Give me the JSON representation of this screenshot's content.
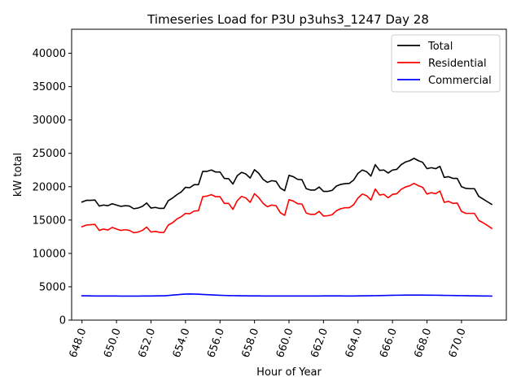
{
  "chart_data": {
    "type": "line",
    "title": "Timeseries Load for P3U p3uhs3_1247  Day 28",
    "xlabel": "Hour of Year",
    "ylabel": "kW total",
    "xlim": [
      647.4,
      672.6
    ],
    "ylim": [
      0,
      43600
    ],
    "xticks": [
      648,
      650,
      652,
      654,
      656,
      658,
      660,
      662,
      664,
      666,
      668,
      670
    ],
    "xtick_labels": [
      "648.0",
      "650.0",
      "652.0",
      "654.0",
      "656.0",
      "658.0",
      "660.0",
      "662.0",
      "664.0",
      "666.0",
      "668.0",
      "670.0"
    ],
    "yticks": [
      0,
      5000,
      10000,
      15000,
      20000,
      25000,
      30000,
      35000,
      40000
    ],
    "ytick_labels": [
      "0",
      "5000",
      "10000",
      "15000",
      "20000",
      "25000",
      "30000",
      "35000",
      "40000"
    ],
    "grid": false,
    "legend_position": "top-right",
    "x_start": 648,
    "x_step": 0.25,
    "series": [
      {
        "name": "Total",
        "color": "#000000",
        "values": [
          17700,
          17950,
          17950,
          18000,
          17100,
          17250,
          17150,
          17450,
          17250,
          17050,
          17150,
          17100,
          16700,
          16800,
          17050,
          17550,
          16800,
          16900,
          16750,
          16750,
          17900,
          18300,
          18800,
          19200,
          19900,
          19850,
          20300,
          20300,
          22300,
          22300,
          22500,
          22200,
          22200,
          21250,
          21200,
          20400,
          21650,
          22150,
          21900,
          21300,
          22550,
          22000,
          21100,
          20650,
          20900,
          20800,
          19800,
          19400,
          21700,
          21500,
          21100,
          21050,
          19700,
          19500,
          19500,
          19950,
          19300,
          19300,
          19450,
          20100,
          20350,
          20450,
          20500,
          21000,
          22000,
          22500,
          22250,
          21600,
          23300,
          22450,
          22500,
          22050,
          22500,
          22600,
          23300,
          23700,
          23900,
          24250,
          23900,
          23650,
          22700,
          22850,
          22700,
          23050,
          21400,
          21500,
          21250,
          21250,
          20000,
          19750,
          19700,
          19700,
          18550,
          18150,
          17750,
          17350
        ]
      },
      {
        "name": "Residential",
        "color": "#ff0000",
        "values": [
          14000,
          14250,
          14300,
          14350,
          13450,
          13650,
          13500,
          13900,
          13650,
          13450,
          13550,
          13450,
          13100,
          13200,
          13450,
          13950,
          13200,
          13300,
          13150,
          13150,
          14250,
          14600,
          15150,
          15500,
          16000,
          15950,
          16350,
          16400,
          18500,
          18600,
          18800,
          18500,
          18500,
          17500,
          17500,
          16600,
          17900,
          18550,
          18300,
          17650,
          18950,
          18350,
          17500,
          17000,
          17250,
          17150,
          16100,
          15700,
          18050,
          17850,
          17450,
          17400,
          16050,
          15850,
          15850,
          16300,
          15600,
          15650,
          15800,
          16400,
          16700,
          16850,
          16850,
          17300,
          18300,
          18900,
          18650,
          18000,
          19650,
          18750,
          18850,
          18350,
          18850,
          18950,
          19600,
          19950,
          20150,
          20500,
          20150,
          19900,
          18900,
          19100,
          18950,
          19350,
          17650,
          17800,
          17500,
          17550,
          16300,
          16000,
          16000,
          16000,
          14950,
          14600,
          14200,
          13750
        ]
      },
      {
        "name": "Commercial",
        "color": "#0000ff",
        "values": [
          3650,
          3640,
          3630,
          3620,
          3620,
          3620,
          3610,
          3610,
          3610,
          3600,
          3600,
          3600,
          3600,
          3600,
          3610,
          3620,
          3620,
          3630,
          3640,
          3650,
          3690,
          3750,
          3800,
          3860,
          3910,
          3920,
          3910,
          3890,
          3850,
          3810,
          3780,
          3750,
          3720,
          3700,
          3680,
          3670,
          3660,
          3650,
          3640,
          3630,
          3630,
          3630,
          3620,
          3620,
          3620,
          3620,
          3620,
          3620,
          3620,
          3620,
          3620,
          3620,
          3620,
          3620,
          3620,
          3620,
          3630,
          3630,
          3630,
          3630,
          3630,
          3620,
          3620,
          3620,
          3630,
          3640,
          3650,
          3660,
          3670,
          3680,
          3690,
          3710,
          3720,
          3730,
          3740,
          3750,
          3750,
          3750,
          3750,
          3750,
          3740,
          3740,
          3730,
          3720,
          3710,
          3700,
          3690,
          3680,
          3670,
          3660,
          3650,
          3640,
          3630,
          3620,
          3610,
          3600
        ]
      }
    ]
  }
}
